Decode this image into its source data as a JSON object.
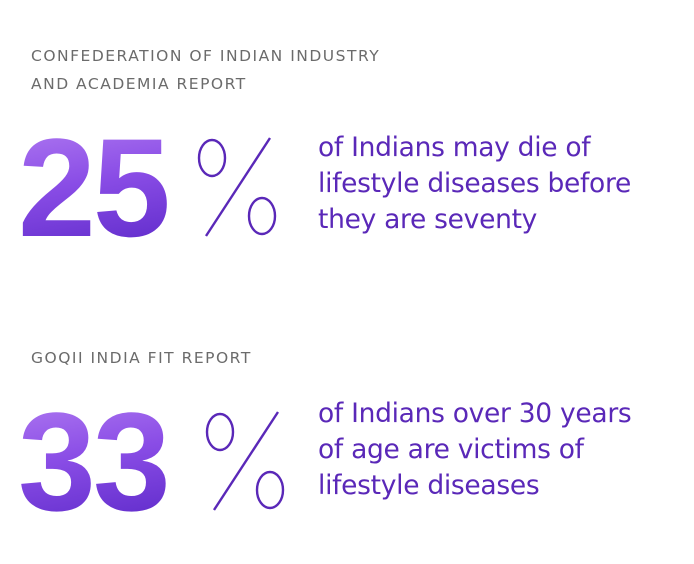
{
  "stats": [
    {
      "source": "CONFEDERATION OF INDIAN INDUSTRY\nAND ACADEMIA REPORT",
      "number": "25",
      "description_lines": [
        "of Indians may die of",
        "lifestyle diseases before",
        "they are seventy"
      ]
    },
    {
      "source": "GOQII INDIA FIT REPORT",
      "number": "33",
      "description_lines": [
        "of Indians over 30 years",
        "of age are victims of",
        "lifestyle diseases"
      ]
    }
  ],
  "colors": {
    "accent_text": "#5a28b8",
    "gradient_light": "#b27cf2",
    "gradient_dark": "#5a27c7",
    "label_gray": "#6b6b6b"
  },
  "icons": {
    "percent": "percent-sign"
  }
}
